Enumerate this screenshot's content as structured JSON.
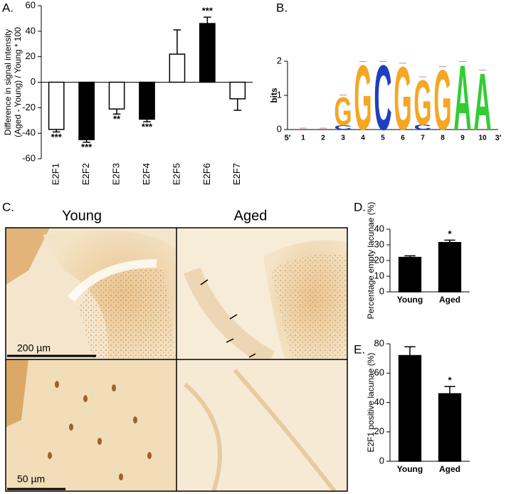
{
  "chart_data": [
    {
      "type": "bar",
      "title": "A.",
      "ylabel": [
        "Difference in signal intensity",
        "(Aged - Young) / Young * 100"
      ],
      "categories": [
        "E2F1",
        "E2F2",
        "E2F3",
        "E2F4",
        "E2F5",
        "E2F6",
        "E2F7"
      ],
      "values": [
        -37,
        -45,
        -21,
        -29,
        22,
        46,
        -13
      ],
      "errors": [
        2,
        2,
        4,
        2,
        19,
        5,
        9
      ],
      "colors": [
        "#ffffff",
        "#000000",
        "#ffffff",
        "#000000",
        "#ffffff",
        "#000000",
        "#ffffff"
      ],
      "significance": [
        "***",
        "***",
        "**",
        "***",
        null,
        "***",
        null
      ],
      "ylim": [
        -60,
        60
      ],
      "yticks": [
        -60,
        -40,
        -20,
        0,
        20,
        40,
        60
      ]
    },
    {
      "type": "logo",
      "title": "B.",
      "ylabel": "bits",
      "ylim": [
        0,
        2
      ],
      "yticks": [
        0,
        1,
        2
      ],
      "x_start_label": "5′",
      "x_end_label": "3′",
      "categories": [
        "1",
        "2",
        "3",
        "4",
        "5",
        "6",
        "7",
        "8",
        "9",
        "10"
      ],
      "stacks": [
        [],
        [],
        [
          {
            "letter": "C",
            "color": "#1f3fbf",
            "bits": 0.12
          },
          {
            "letter": "G",
            "color": "#f5a623",
            "bits": 0.85
          }
        ],
        [
          {
            "letter": "G",
            "color": "#f5a623",
            "bits": 1.95
          }
        ],
        [
          {
            "letter": "C",
            "color": "#1f3fbf",
            "bits": 1.95
          }
        ],
        [
          {
            "letter": "G",
            "color": "#f5a623",
            "bits": 1.9
          }
        ],
        [
          {
            "letter": "C",
            "color": "#1f3fbf",
            "bits": 0.15
          },
          {
            "letter": "G",
            "color": "#f5a623",
            "bits": 1.35
          }
        ],
        [
          {
            "letter": "G",
            "color": "#f5a623",
            "bits": 1.8
          }
        ],
        [
          {
            "letter": "A",
            "color": "#33cc33",
            "bits": 1.95
          }
        ],
        [
          {
            "letter": "A",
            "color": "#33cc33",
            "bits": 1.7
          }
        ]
      ]
    },
    {
      "type": "bar",
      "title": "D.",
      "ylabel": [
        "Percentage empty lacunae (%)"
      ],
      "categories": [
        "Young",
        "Aged"
      ],
      "values": [
        22,
        31.5
      ],
      "errors": [
        1,
        1.5
      ],
      "colors": [
        "#000000",
        "#000000"
      ],
      "significance": [
        null,
        "*"
      ],
      "ylim": [
        0,
        40
      ],
      "yticks": [
        0,
        10,
        20,
        30,
        40
      ]
    },
    {
      "type": "bar",
      "title": "E.",
      "ylabel": [
        "E2F1 positive lacunae (%)"
      ],
      "categories": [
        "Young",
        "Aged"
      ],
      "values": [
        72,
        46
      ],
      "errors": [
        6,
        5
      ],
      "colors": [
        "#000000",
        "#000000"
      ],
      "significance": [
        null,
        "*"
      ],
      "ylim": [
        0,
        80
      ],
      "yticks": [
        0,
        20,
        40,
        60,
        80
      ]
    }
  ],
  "micrographs": {
    "label": "C.",
    "column_titles": [
      "Young",
      "Aged"
    ],
    "scale_bars": [
      "200 µm",
      "50 µm"
    ]
  }
}
